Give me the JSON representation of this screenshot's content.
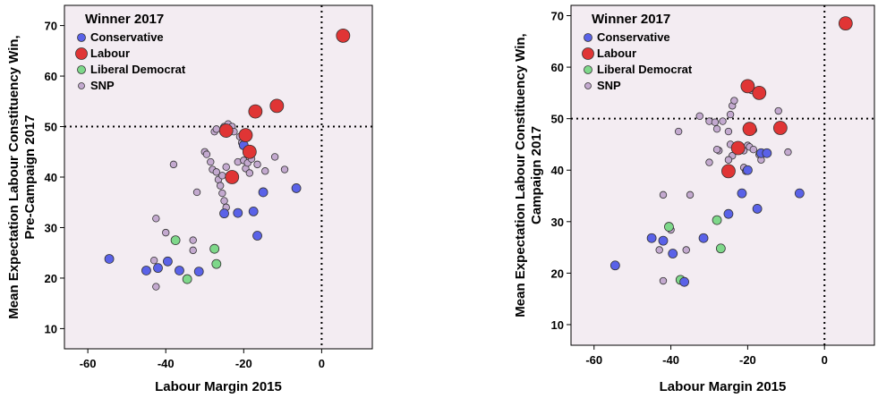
{
  "colors": {
    "plot_background": "#f3ecf2",
    "Conservative": "#5a62e8",
    "Labour": "#e03535",
    "Liberal Democrat": "#7ed88a",
    "SNP": "#c3a9cf"
  },
  "chart_data": [
    {
      "type": "scatter",
      "xlabel": "Labour Margin 2015",
      "ylabel_lines": [
        "Mean Expectation Labour Constituency Win,",
        "Pre-Campaign 2017"
      ],
      "xlim": [
        -66,
        13
      ],
      "ylim": [
        6,
        74
      ],
      "xticks": [
        -60,
        -40,
        -20,
        0
      ],
      "yticks": [
        10,
        20,
        30,
        40,
        50,
        60,
        70
      ],
      "reference_lines": {
        "x": 0,
        "y": 50,
        "style": "dotted"
      },
      "legend": {
        "title": "Winner 2017",
        "entries": [
          "Conservative",
          "Labour",
          "Liberal Democrat",
          "SNP"
        ],
        "position": "top-left"
      },
      "series": [
        {
          "name": "Conservative",
          "points": [
            [
              -54.5,
              23.8
            ],
            [
              -45,
              21.5
            ],
            [
              -42,
              22
            ],
            [
              -39.5,
              23.3
            ],
            [
              -36.5,
              21.5
            ],
            [
              -31.5,
              21.3
            ],
            [
              -25,
              32.8
            ],
            [
              -21.5,
              32.9
            ],
            [
              -17.5,
              33.2
            ],
            [
              -16.5,
              28.4
            ],
            [
              -15,
              37
            ],
            [
              -6.5,
              37.8
            ],
            [
              -20,
              46.3
            ]
          ]
        },
        {
          "name": "Labour",
          "points": [
            [
              -23,
              40
            ],
            [
              -18.5,
              45
            ],
            [
              -19.5,
              48.3
            ],
            [
              -24.5,
              49.2
            ],
            [
              -17,
              53
            ],
            [
              -11.5,
              54.1
            ],
            [
              5.5,
              68
            ]
          ]
        },
        {
          "name": "Liberal Democrat",
          "points": [
            [
              -37.5,
              27.5
            ],
            [
              -34.5,
              19.8
            ],
            [
              -27.5,
              25.8
            ],
            [
              -27,
              22.8
            ]
          ]
        },
        {
          "name": "SNP",
          "points": [
            [
              -42.5,
              31.8
            ],
            [
              -42.5,
              18.3
            ],
            [
              -43,
              23.5
            ],
            [
              -40,
              29
            ],
            [
              -38,
              42.5
            ],
            [
              -33,
              27.5
            ],
            [
              -33,
              25.5
            ],
            [
              -32,
              37
            ],
            [
              -30,
              45
            ],
            [
              -29.5,
              44.5
            ],
            [
              -28.5,
              43
            ],
            [
              -28,
              41.5
            ],
            [
              -27,
              41
            ],
            [
              -26.5,
              39.5
            ],
            [
              -25.5,
              40.3
            ],
            [
              -26,
              38.3
            ],
            [
              -25.5,
              36.8
            ],
            [
              -25,
              35.3
            ],
            [
              -24.5,
              42
            ],
            [
              -27.5,
              49
            ],
            [
              -27,
              49.5
            ],
            [
              -25,
              50
            ],
            [
              -24,
              50.5
            ],
            [
              -23,
              50
            ],
            [
              -22.5,
              49
            ],
            [
              -21,
              48
            ],
            [
              -20.5,
              46.8
            ],
            [
              -21.5,
              43
            ],
            [
              -20,
              43.3
            ],
            [
              -19.5,
              41.7
            ],
            [
              -19,
              42.8
            ],
            [
              -18,
              43.6
            ],
            [
              -18.5,
              40.8
            ],
            [
              -16.5,
              42.5
            ],
            [
              -14.5,
              41.2
            ],
            [
              -12,
              44
            ],
            [
              -9.5,
              41.5
            ],
            [
              -24.5,
              34
            ]
          ]
        }
      ]
    },
    {
      "type": "scatter",
      "xlabel": "Labour Margin 2015",
      "ylabel_lines": [
        "Mean Expectation Labour Constituency Win,",
        "Campaign 2017"
      ],
      "xlim": [
        -66,
        13
      ],
      "ylim": [
        6,
        72
      ],
      "xticks": [
        -60,
        -40,
        -20,
        0
      ],
      "yticks": [
        10,
        20,
        30,
        40,
        50,
        60,
        70
      ],
      "reference_lines": {
        "x": 0,
        "y": 50,
        "style": "dotted"
      },
      "legend": {
        "title": "Winner 2017",
        "entries": [
          "Conservative",
          "Labour",
          "Liberal Democrat",
          "SNP"
        ],
        "position": "top-left"
      },
      "series": [
        {
          "name": "Conservative",
          "points": [
            [
              -54.5,
              21.5
            ],
            [
              -45,
              26.8
            ],
            [
              -42,
              26.3
            ],
            [
              -39.5,
              23.8
            ],
            [
              -36.5,
              18.3
            ],
            [
              -31.5,
              26.8
            ],
            [
              -25,
              31.5
            ],
            [
              -21.5,
              35.5
            ],
            [
              -17.5,
              32.5
            ],
            [
              -16.5,
              43.3
            ],
            [
              -15,
              43.3
            ],
            [
              -6.5,
              35.5
            ],
            [
              -20,
              40
            ]
          ]
        },
        {
          "name": "Labour",
          "points": [
            [
              -25,
              39.8
            ],
            [
              -22.5,
              44.3
            ],
            [
              -20,
              56.3
            ],
            [
              -19.5,
              48
            ],
            [
              -17,
              55
            ],
            [
              -11.5,
              48.2
            ],
            [
              5.5,
              68.5
            ]
          ]
        },
        {
          "name": "Liberal Democrat",
          "points": [
            [
              -40.5,
              29
            ],
            [
              -37.5,
              18.7
            ],
            [
              -28,
              30.3
            ],
            [
              -27,
              24.8
            ]
          ]
        },
        {
          "name": "SNP",
          "points": [
            [
              -42,
              35.2
            ],
            [
              -42,
              18.5
            ],
            [
              -43,
              24.5
            ],
            [
              -40,
              28.4
            ],
            [
              -38,
              47.5
            ],
            [
              -35,
              35.2
            ],
            [
              -36,
              24.5
            ],
            [
              -32.5,
              50.5
            ],
            [
              -30,
              49.5
            ],
            [
              -28.5,
              49.3
            ],
            [
              -28,
              48
            ],
            [
              -26.5,
              49.5
            ],
            [
              -27.5,
              43.8
            ],
            [
              -30,
              41.5
            ],
            [
              -25,
              47.5
            ],
            [
              -24.5,
              50.8
            ],
            [
              -24,
              52.5
            ],
            [
              -23.5,
              53.5
            ],
            [
              -24.5,
              45
            ],
            [
              -24,
              42.8
            ],
            [
              -25,
              42
            ],
            [
              -21,
              43.8
            ],
            [
              -20,
              44.8
            ],
            [
              -19.5,
              44.5
            ],
            [
              -18.5,
              44
            ],
            [
              -17,
              43
            ],
            [
              -16.5,
              42
            ],
            [
              -18.5,
              47.8
            ],
            [
              -19,
              55.5
            ],
            [
              -21,
              40.5
            ],
            [
              -20.5,
              39.8
            ],
            [
              -12,
              51.5
            ],
            [
              -9.5,
              43.5
            ],
            [
              -28,
              44
            ]
          ]
        }
      ]
    }
  ]
}
